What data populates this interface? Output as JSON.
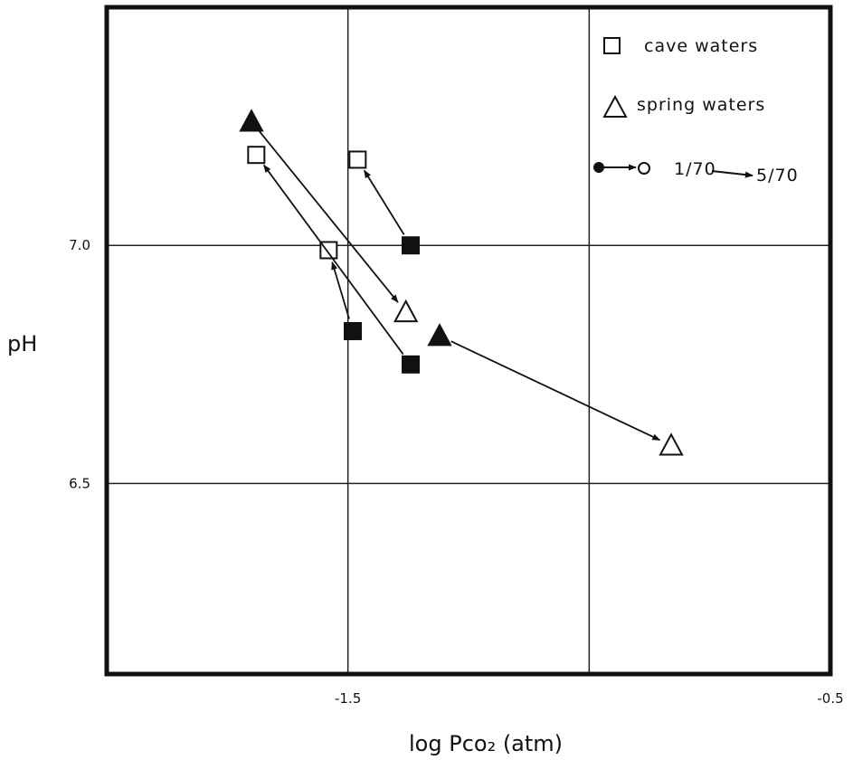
{
  "chart_data": {
    "type": "scatter",
    "title": "",
    "xlabel": "log Pco₂ (atm)",
    "ylabel": "pH",
    "xlim": [
      -2.0,
      -0.5
    ],
    "ylim": [
      6.1,
      7.5
    ],
    "x_ticks": [
      {
        "value": -1.5,
        "label": "-1.5"
      },
      {
        "value": -0.5,
        "label": "-0.5"
      }
    ],
    "y_ticks": [
      {
        "value": 7.0,
        "label": "7.0"
      },
      {
        "value": 6.5,
        "label": "6.5"
      }
    ],
    "x_gridlines": [
      -1.5,
      -1.0
    ],
    "y_gridlines": [
      7.0,
      6.5
    ],
    "grid": true,
    "legend": {
      "placement": "top-right",
      "entries": [
        {
          "marker": "square-open",
          "label": "cave waters"
        },
        {
          "marker": "triangle-open",
          "label": "spring waters"
        },
        {
          "marker": "filled-to-open",
          "from_label": "1/70",
          "to_label": "5/70"
        }
      ]
    },
    "markers_meaning": {
      "filled": "1/70",
      "open": "5/70"
    },
    "series": [
      {
        "type": "cave",
        "from": [
          -1.37,
          7.0
        ],
        "to": [
          -1.48,
          7.18
        ]
      },
      {
        "type": "cave",
        "from": [
          -1.49,
          6.82
        ],
        "to": [
          -1.54,
          6.99
        ]
      },
      {
        "type": "cave",
        "from": [
          -1.37,
          6.75
        ],
        "to": [
          -1.69,
          7.19
        ]
      },
      {
        "type": "spring",
        "from": [
          -1.7,
          7.26
        ],
        "to": [
          -1.38,
          6.86
        ]
      },
      {
        "type": "spring",
        "from": [
          -1.31,
          6.81
        ],
        "to": [
          -0.83,
          6.58
        ]
      }
    ],
    "colors": {
      "ink": "#111111",
      "background": "#ffffff"
    }
  }
}
